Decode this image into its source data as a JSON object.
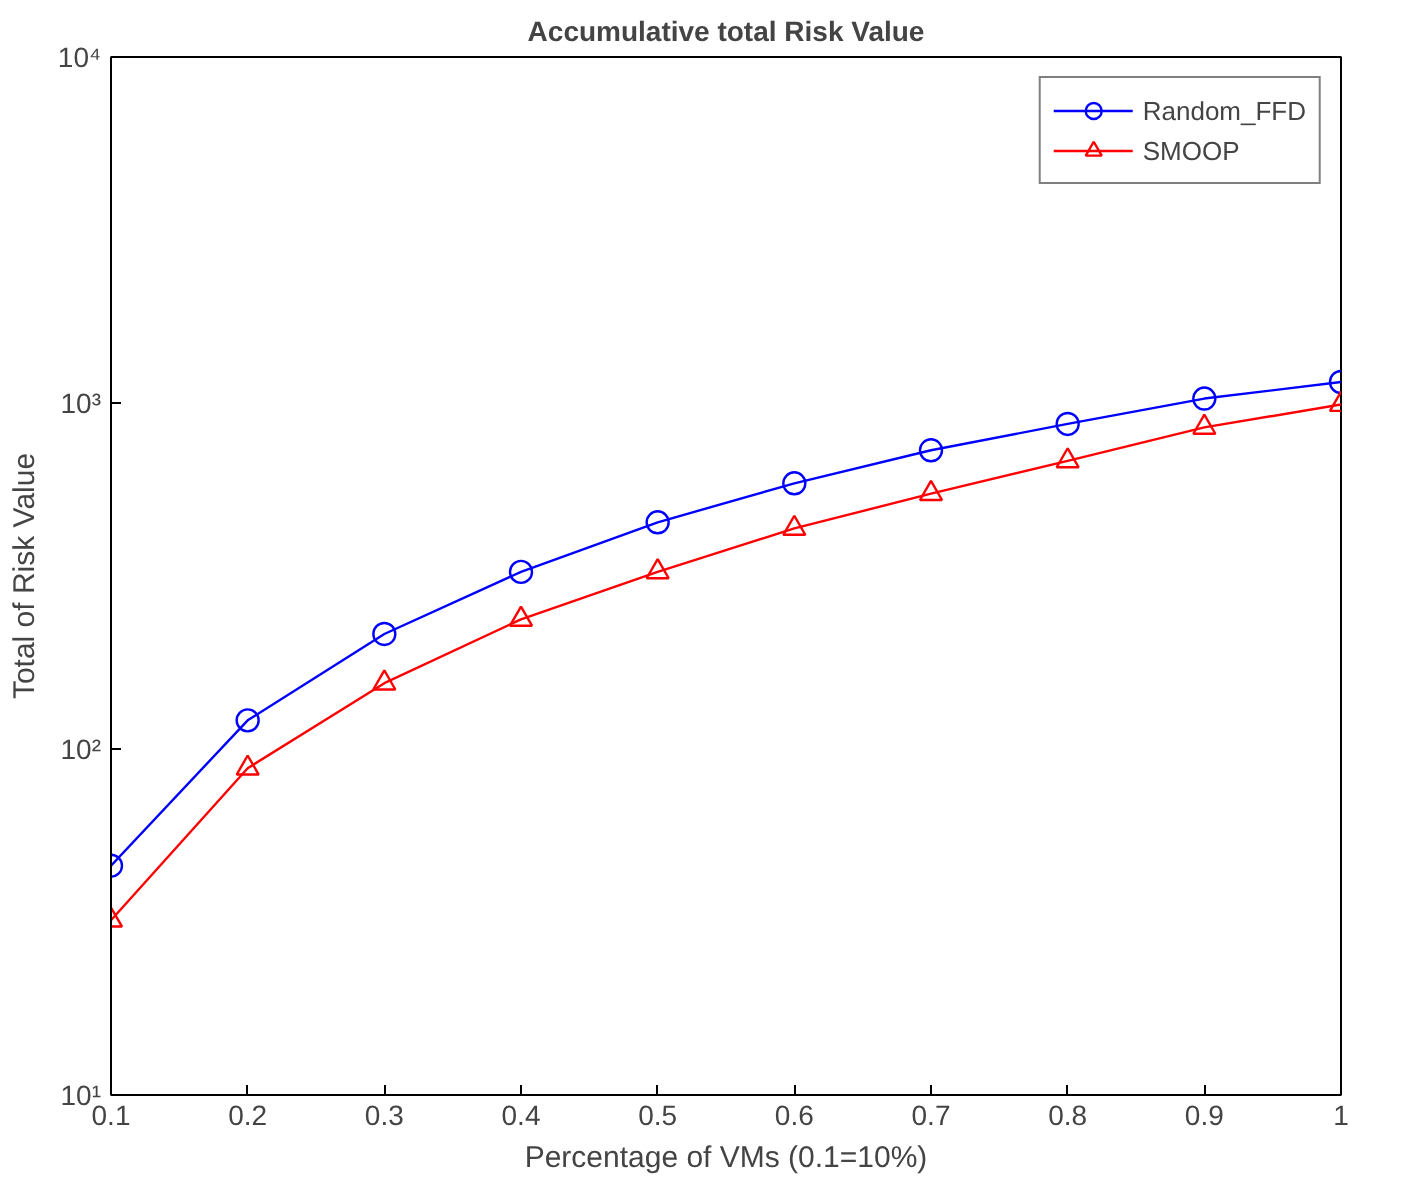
{
  "chart_data": {
    "type": "line",
    "title": "Accumulative total Risk Value",
    "xlabel": "Percentage of VMs (0.1=10%)",
    "ylabel": "Total of Risk Value",
    "x": [
      0.1,
      0.2,
      0.3,
      0.4,
      0.5,
      0.6,
      0.7,
      0.8,
      0.9,
      1.0
    ],
    "series": [
      {
        "name": "Random_FFD",
        "color": "#0000ff",
        "marker": "circle",
        "values": [
          46,
          121,
          215,
          325,
          452,
          586,
          730,
          870,
          1030,
          1150
        ]
      },
      {
        "name": "SMOOP",
        "color": "#ff0000",
        "marker": "triangle",
        "values": [
          32,
          88,
          155,
          237,
          325,
          434,
          547,
          680,
          850,
          990
        ]
      }
    ],
    "log": "y",
    "xlim": [
      0.1,
      1.0
    ],
    "ylim": [
      10,
      10000
    ],
    "xticks": [
      0.1,
      0.2,
      0.3,
      0.4,
      0.5,
      0.6,
      0.7,
      0.8,
      0.9,
      1
    ],
    "yticks": [
      {
        "value": 10,
        "label": "10¹"
      },
      {
        "value": 100,
        "label": "10²"
      },
      {
        "value": 1000,
        "label": "10³"
      },
      {
        "value": 10000,
        "label": "10⁴"
      }
    ],
    "grid": false,
    "legend": "top right",
    "line_style": "solid"
  }
}
